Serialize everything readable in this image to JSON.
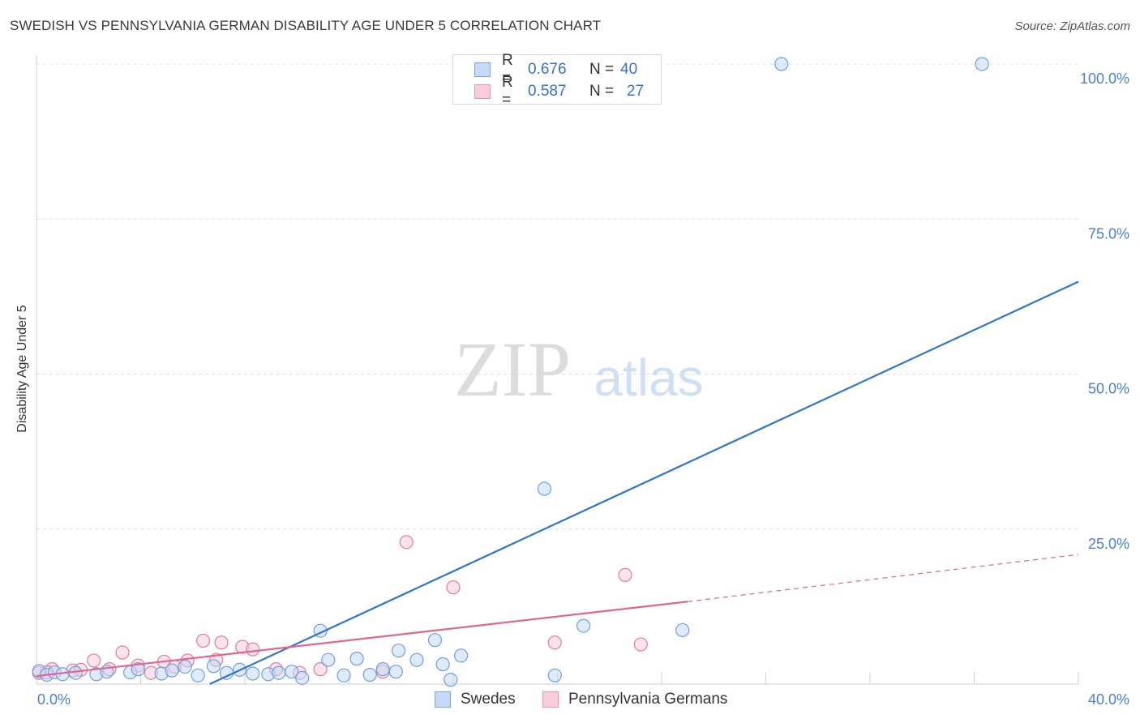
{
  "header": {
    "title": "SWEDISH VS PENNSYLVANIA GERMAN DISABILITY AGE UNDER 5 CORRELATION CHART",
    "source": "Source: ZipAtlas.com"
  },
  "watermark": {
    "zip": "ZIP",
    "atlas": "atlas"
  },
  "legend": {
    "rows": [
      {
        "r_label": "R =",
        "r_value": "0.676",
        "n_label": "N =",
        "n_value": "40",
        "color": "#a9c8f0",
        "border": "#7aa6e0"
      },
      {
        "r_label": "R =",
        "r_value": "0.587",
        "n_label": "N =",
        "n_value": "27",
        "color": "#f7c5d4",
        "border": "#e895ad"
      }
    ]
  },
  "bottom_legend": {
    "items": [
      {
        "label": "Swedes",
        "color": "#a9c8f0",
        "border": "#7aa6e0"
      },
      {
        "label": "Pennsylvania Germans",
        "color": "#f7c5d4",
        "border": "#e895ad"
      }
    ]
  },
  "chart_data": {
    "type": "scatter",
    "title": "SWEDISH VS PENNSYLVANIA GERMAN DISABILITY AGE UNDER 5 CORRELATION CHART",
    "xlabel": "",
    "ylabel": "Disability Age Under 5",
    "xlim": [
      0,
      40
    ],
    "ylim": [
      0,
      100
    ],
    "x_tick_labels": [
      "0.0%",
      "40.0%"
    ],
    "y_ticks": [
      25,
      50,
      75,
      100
    ],
    "y_tick_labels": [
      "25.0%",
      "50.0%",
      "75.0%",
      "100.0%"
    ],
    "grid": true,
    "legend_position": "top-center",
    "series": [
      {
        "name": "Swedes",
        "color": "#6f9fe0",
        "fill": "#c4daf6",
        "points": [
          [
            0.1,
            2.1
          ],
          [
            0.4,
            1.5
          ],
          [
            0.7,
            1.9
          ],
          [
            1.0,
            1.6
          ],
          [
            1.5,
            1.8
          ],
          [
            2.3,
            1.6
          ],
          [
            2.7,
            2.0
          ],
          [
            3.6,
            1.9
          ],
          [
            3.9,
            2.4
          ],
          [
            4.8,
            1.7
          ],
          [
            5.2,
            2.2
          ],
          [
            5.7,
            2.8
          ],
          [
            6.2,
            1.4
          ],
          [
            6.8,
            2.9
          ],
          [
            7.3,
            1.8
          ],
          [
            7.8,
            2.3
          ],
          [
            8.3,
            1.7
          ],
          [
            8.9,
            1.6
          ],
          [
            9.3,
            1.8
          ],
          [
            9.8,
            2.0
          ],
          [
            10.2,
            1.0
          ],
          [
            10.9,
            8.6
          ],
          [
            11.2,
            3.9
          ],
          [
            11.8,
            1.4
          ],
          [
            12.3,
            4.1
          ],
          [
            12.8,
            1.5
          ],
          [
            13.3,
            2.4
          ],
          [
            13.8,
            2.0
          ],
          [
            13.9,
            5.4
          ],
          [
            14.6,
            3.9
          ],
          [
            15.3,
            7.1
          ],
          [
            15.6,
            3.2
          ],
          [
            15.9,
            0.7
          ],
          [
            16.3,
            4.6
          ],
          [
            19.5,
            31.5
          ],
          [
            19.9,
            1.4
          ],
          [
            21.0,
            9.4
          ],
          [
            24.8,
            8.7
          ],
          [
            28.6,
            100
          ],
          [
            36.3,
            100
          ]
        ],
        "trend": {
          "x": [
            6.65,
            40.0
          ],
          "y": [
            0.0,
            64.9
          ],
          "style": "solid"
        }
      },
      {
        "name": "Pennsylvania Germans",
        "color": "#e07da0",
        "fill": "#f9ccda",
        "points": [
          [
            0.1,
            1.8
          ],
          [
            0.6,
            2.4
          ],
          [
            1.4,
            2.2
          ],
          [
            1.7,
            2.3
          ],
          [
            2.2,
            3.8
          ],
          [
            2.8,
            2.4
          ],
          [
            3.3,
            5.1
          ],
          [
            3.9,
            3.0
          ],
          [
            4.4,
            1.8
          ],
          [
            4.9,
            3.6
          ],
          [
            5.3,
            2.8
          ],
          [
            5.8,
            3.8
          ],
          [
            6.4,
            7.0
          ],
          [
            6.9,
            3.9
          ],
          [
            7.1,
            6.7
          ],
          [
            7.9,
            6.0
          ],
          [
            8.3,
            5.6
          ],
          [
            9.2,
            2.4
          ],
          [
            10.1,
            1.8
          ],
          [
            10.9,
            2.4
          ],
          [
            13.3,
            2.0
          ],
          [
            14.2,
            22.9
          ],
          [
            16.0,
            15.6
          ],
          [
            19.9,
            6.7
          ],
          [
            22.6,
            17.6
          ],
          [
            23.2,
            6.4
          ],
          [
            0.4,
            1.9
          ]
        ],
        "trend": {
          "x": [
            0.0,
            25.0
          ],
          "y": [
            1.3,
            13.3
          ],
          "style": "solid",
          "extended_to": [
            40.0,
            20.9
          ],
          "extended_style": "dashed"
        }
      }
    ]
  }
}
